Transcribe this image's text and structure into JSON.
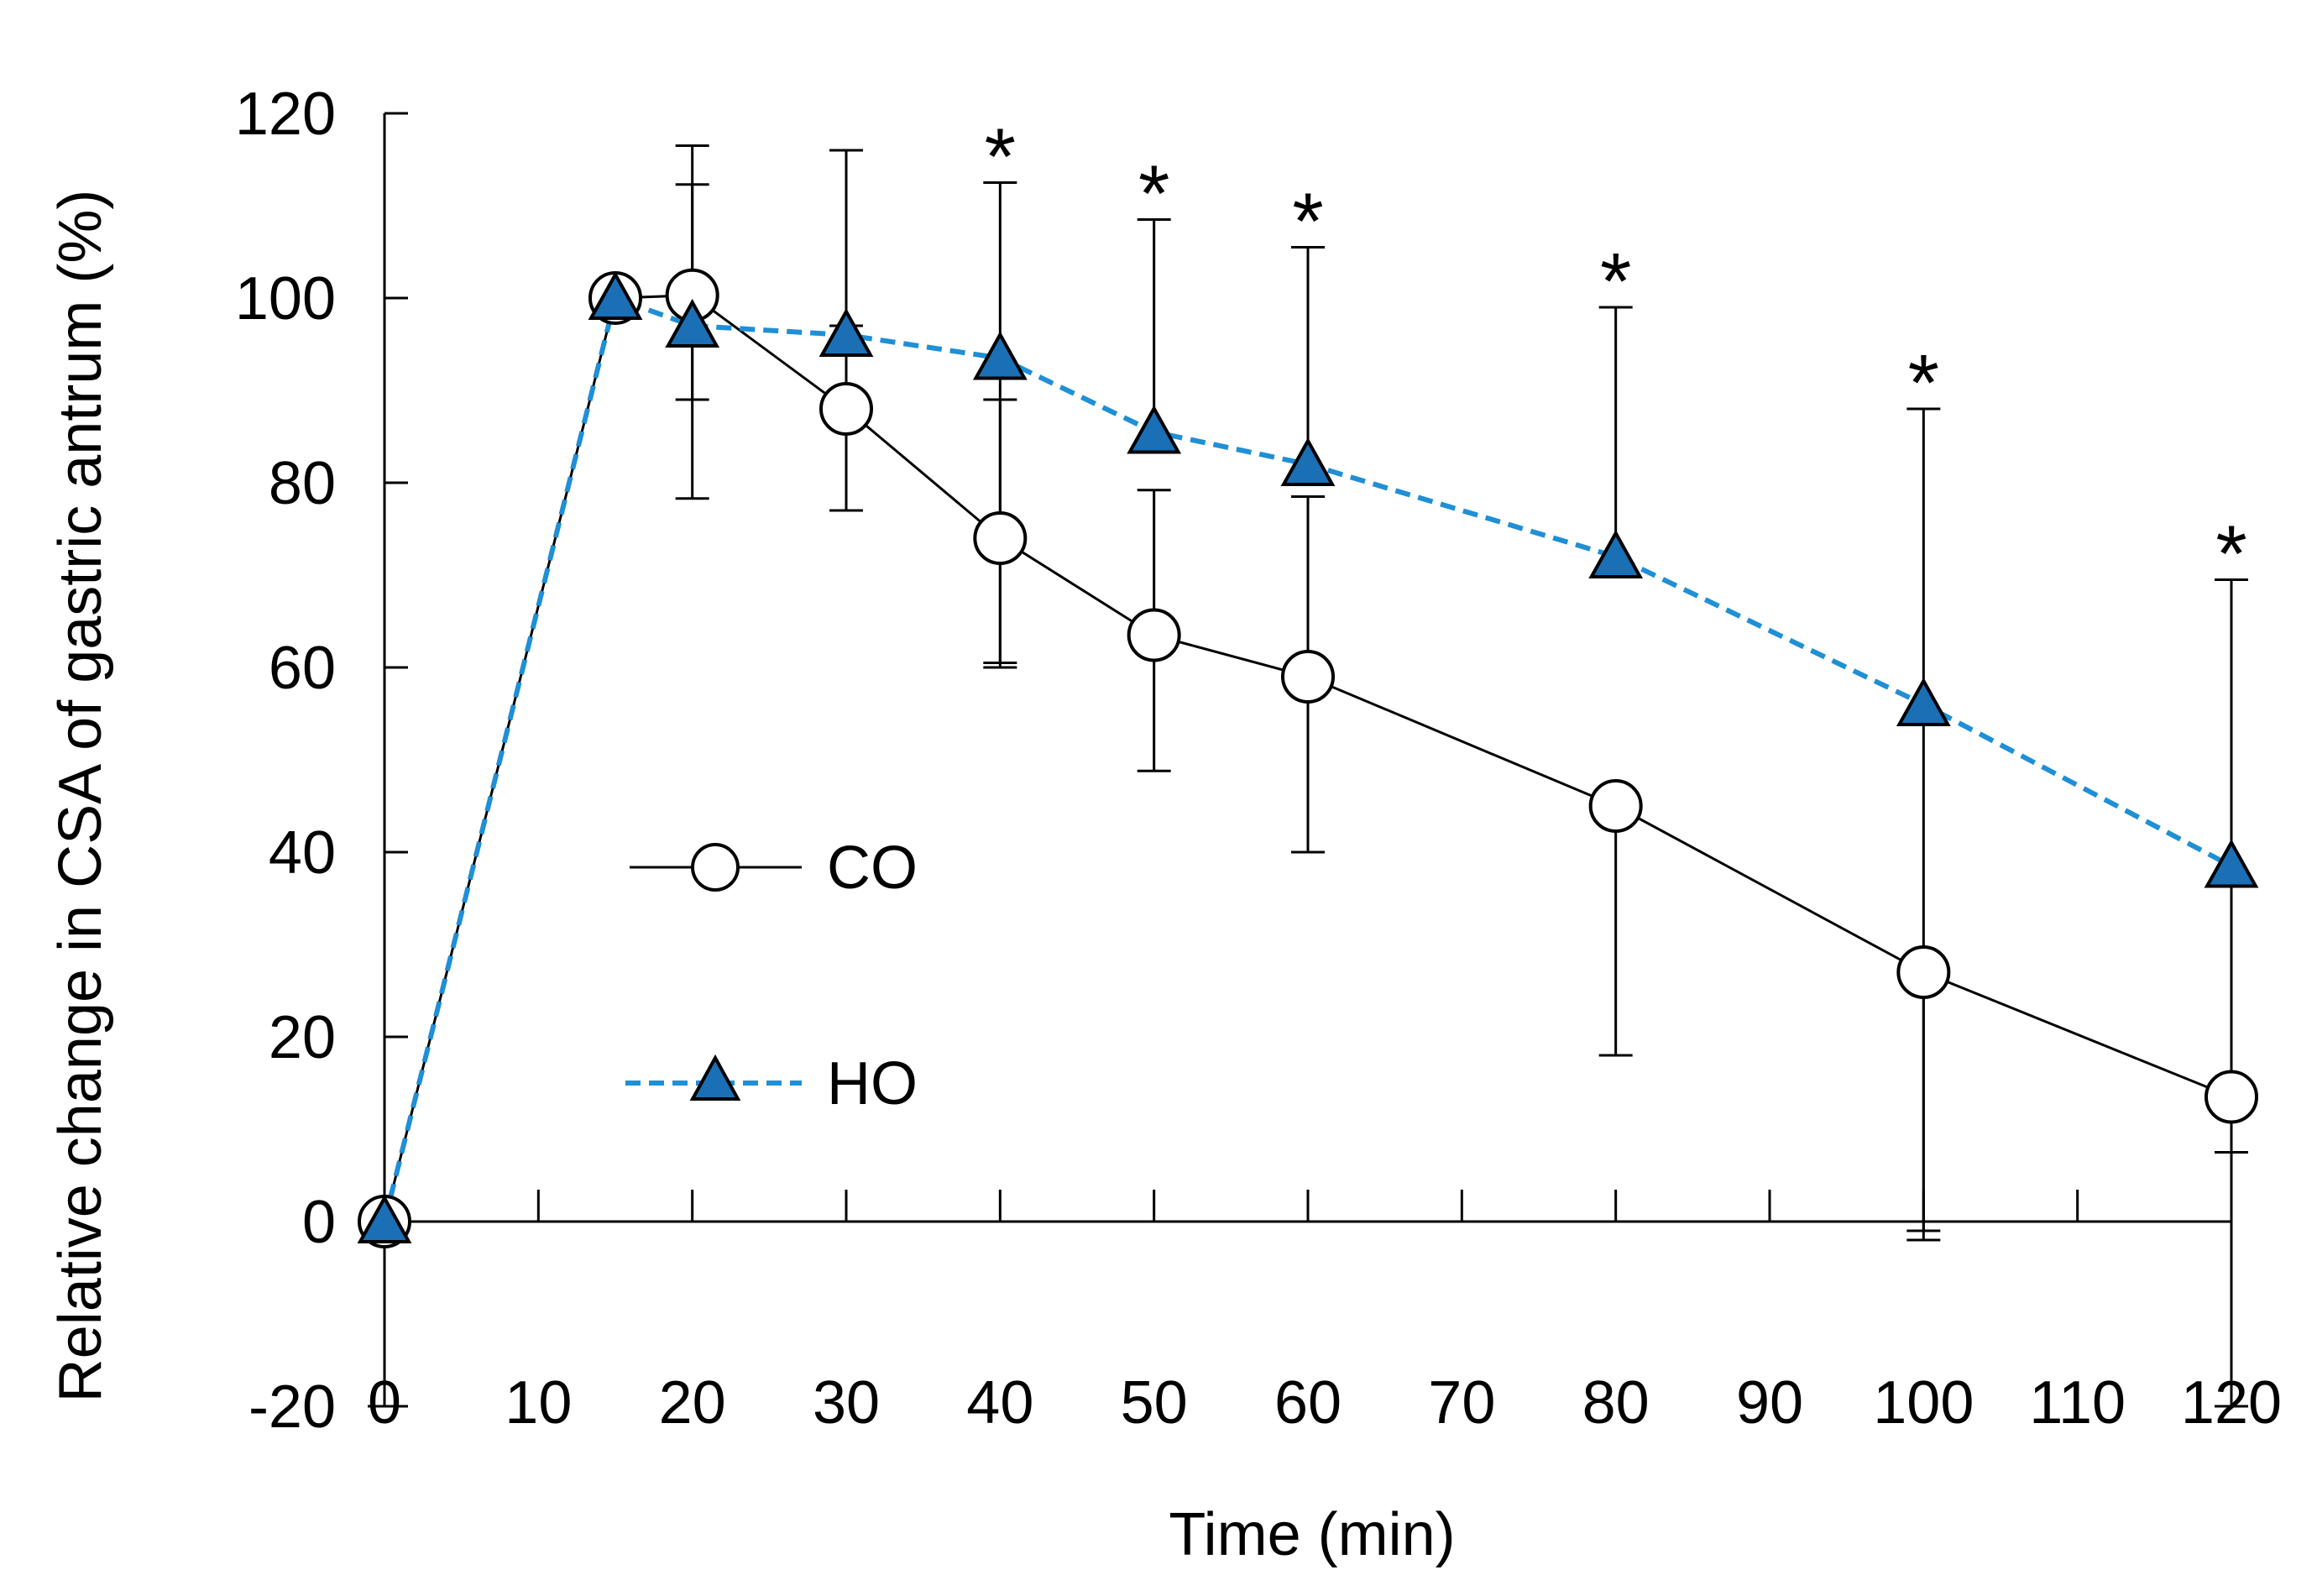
{
  "chart_data": {
    "type": "line",
    "title": "",
    "xlabel": "Time (min)",
    "ylabel": "Relative change in CSA of gastric antrum (%)",
    "xlim": [
      0,
      120
    ],
    "ylim": [
      -20,
      120
    ],
    "xticks": [
      0,
      10,
      20,
      30,
      40,
      50,
      60,
      70,
      80,
      90,
      100,
      110,
      120
    ],
    "yticks": [
      -20,
      0,
      20,
      40,
      60,
      80,
      100,
      120
    ],
    "xtick_labels": [
      "0",
      "10",
      "20",
      "30",
      "40",
      "50",
      "60",
      "70",
      "80",
      "90",
      "100",
      "110",
      "120"
    ],
    "ytick_labels": [
      "-20",
      "0",
      "20",
      "40",
      "60",
      "80",
      "100",
      "120"
    ],
    "grid": false,
    "legend_position": "center-left",
    "series": [
      {
        "name": "CO",
        "marker": "circle",
        "line_style": "solid",
        "color": "#000000",
        "fill": "#ffffff",
        "x": [
          0,
          15,
          20,
          30,
          40,
          50,
          60,
          80,
          100,
          120
        ],
        "y": [
          0,
          100,
          100.3,
          88,
          74,
          63.5,
          59,
          45,
          27,
          13.5
        ],
        "err_low": [
          0,
          0,
          22,
          11,
          14,
          14.7,
          19,
          27,
          29,
          6
        ],
        "err_high": [
          0,
          0,
          12,
          9,
          15,
          15.7,
          19.5,
          0,
          0,
          0
        ]
      },
      {
        "name": "HO",
        "marker": "triangle",
        "line_style": "dashed",
        "color": "#1f8fd6",
        "fill": "#1a6fb5",
        "x": [
          0,
          15,
          20,
          30,
          40,
          50,
          60,
          80,
          100,
          120
        ],
        "y": [
          0,
          100,
          97,
          96,
          93.5,
          85.5,
          82,
          72,
          56,
          38.5
        ],
        "err_low": [
          20,
          0,
          8,
          19,
          33,
          0,
          0,
          0,
          57,
          58.5
        ],
        "err_high": [
          0,
          0,
          19.5,
          20,
          19,
          23,
          23.5,
          27,
          32,
          31
        ]
      }
    ],
    "annotations": [
      {
        "x": 40,
        "text": "*"
      },
      {
        "x": 50,
        "text": "*"
      },
      {
        "x": 60,
        "text": "*"
      },
      {
        "x": 80,
        "text": "*"
      },
      {
        "x": 100,
        "text": "*"
      },
      {
        "x": 120,
        "text": "*"
      }
    ]
  }
}
